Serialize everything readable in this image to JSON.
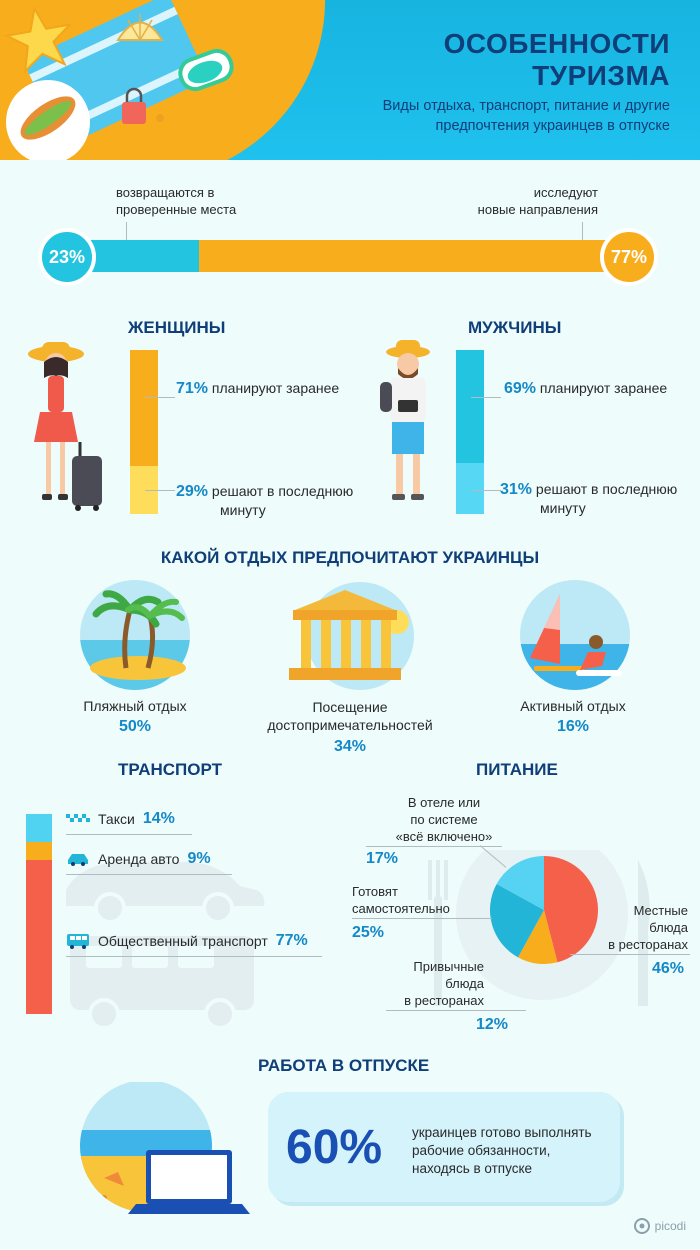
{
  "header": {
    "title_line1": "ОСОБЕННОСТИ",
    "title_line2": "ТУРИЗМА",
    "subtitle": "Виды отдыха, транспорт, питание и другие предпочтения украинцев в отпуске"
  },
  "destinations": {
    "left_label_line1": "возвращаются в",
    "left_label_line2": "проверенные места",
    "left_pct": "23%",
    "left_value": 23,
    "right_label_line1": "исследуют",
    "right_label_line2": "новые направления",
    "right_pct": "77%",
    "right_value": 77
  },
  "women": {
    "title": "ЖЕНЩИНЫ",
    "plan_pct": "71%",
    "plan_label": "планируют заранее",
    "plan_value": 71,
    "last_pct": "29%",
    "last_label_line1": "решают в последнюю",
    "last_label_line2": "минуту",
    "last_value": 29
  },
  "men": {
    "title": "МУЖЧИНЫ",
    "plan_pct": "69%",
    "plan_label": "планируют заранее",
    "plan_value": 69,
    "last_pct": "31%",
    "last_label_line1": "решают в последнюю",
    "last_label_line2": "минуту",
    "last_value": 31
  },
  "rest": {
    "title": "КАКОЙ ОТДЫХ ПРЕДПОЧИТАЮТ УКРАИНЦЫ",
    "items": [
      {
        "label_line1": "Пляжный отдых",
        "label_line2": "",
        "pct": "50%"
      },
      {
        "label_line1": "Посещение",
        "label_line2": "достопримечательностей",
        "pct": "34%"
      },
      {
        "label_line1": "Активный отдых",
        "label_line2": "",
        "pct": "16%"
      }
    ]
  },
  "transport": {
    "title": "ТРАНСПОРТ",
    "items": [
      {
        "label": "Такси",
        "pct": "14%",
        "value": 14,
        "color": "#4fd3f0",
        "icon": "taxi-icon"
      },
      {
        "label": "Аренда авто",
        "pct": "9%",
        "value": 9,
        "color": "#f8ad1d",
        "icon": "car-icon"
      },
      {
        "label": "Общественный транспорт",
        "pct": "77%",
        "value": 77,
        "color": "#f5604a",
        "icon": "bus-icon"
      }
    ]
  },
  "food": {
    "title": "ПИТАНИЕ",
    "slices": [
      {
        "label_lines": [
          "Местные",
          "блюда",
          "в ресторанах"
        ],
        "pct": "46%",
        "value": 46,
        "color": "#f5604a"
      },
      {
        "label_lines": [
          "Привычные",
          "блюда",
          "в ресторанах"
        ],
        "pct": "12%",
        "value": 12,
        "color": "#f8ad1d"
      },
      {
        "label_lines": [
          "Готовят",
          "самостоятельно"
        ],
        "pct": "25%",
        "value": 25,
        "color": "#22b5d8"
      },
      {
        "label_lines": [
          "В отеле или",
          "по системе",
          "«всё включено»"
        ],
        "pct": "17%",
        "value": 17,
        "color": "#56d2f2"
      }
    ]
  },
  "work": {
    "title": "РАБОТА В ОТПУСКЕ",
    "pct": "60%",
    "text_line1": "украинцев готово выполнять",
    "text_line2": "рабочие обязанности,",
    "text_line3": "находясь в отпуске"
  },
  "brand": {
    "name": "picodi"
  },
  "colors": {
    "blue_dark": "#0f3e78",
    "blue_accent": "#1488c8",
    "orange": "#f8ad1d",
    "yellow": "#fddd5a",
    "cyan": "#22c4e0",
    "cyan_light": "#56d8f5",
    "red": "#f5604a"
  }
}
